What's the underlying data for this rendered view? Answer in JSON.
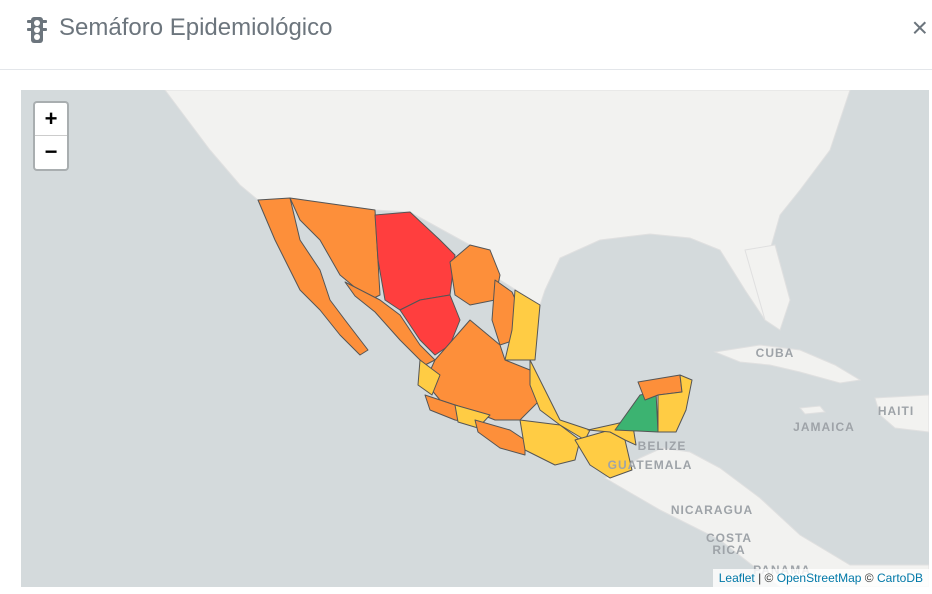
{
  "header": {
    "title": "Semáforo Epidemiológico",
    "close": "×"
  },
  "map": {
    "zoom_in": "+",
    "zoom_out": "−",
    "labels": {
      "cuba": "CUBA",
      "jamaica": "JAMAICA",
      "haiti": "HAITI",
      "belize": "BELIZE",
      "guatemala": "GUATEMALA",
      "nicaragua": "NICARAGUA",
      "costa": "COSTA",
      "rica": "RICA",
      "panama": "PANAMA"
    },
    "attribution": {
      "leaflet": "Leaflet",
      "separator": "| ©",
      "osm": "OpenStreetMap",
      "copy": "©",
      "carto": "CartoDB"
    }
  }
}
